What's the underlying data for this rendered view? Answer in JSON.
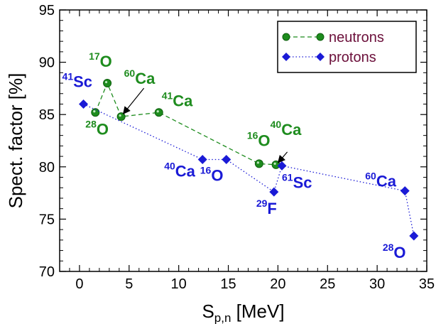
{
  "chart_data": {
    "type": "line",
    "xlabel": {
      "main": "S",
      "sub": "p,n",
      "rest": " [MeV]"
    },
    "ylabel": "Spect. factor [%]",
    "xlim": [
      -2,
      35
    ],
    "ylim": [
      70,
      95
    ],
    "x_ticks": [
      0,
      5,
      10,
      15,
      20,
      25,
      30,
      35
    ],
    "y_ticks": [
      70,
      75,
      80,
      85,
      90,
      95
    ],
    "grid": false,
    "legend_position": "top-right",
    "colors": {
      "neutrons": "#1e8c1e",
      "protons": "#1a1ad6",
      "legend_text": "#6b0f3a"
    },
    "series": [
      {
        "name": "neutrons",
        "marker": "circle",
        "line_style": "dashed",
        "points": [
          {
            "x": 1.6,
            "y": 85.2
          },
          {
            "x": 2.8,
            "y": 88.0
          },
          {
            "x": 4.2,
            "y": 84.8
          },
          {
            "x": 8.0,
            "y": 85.2
          },
          {
            "x": 18.1,
            "y": 80.3
          },
          {
            "x": 19.8,
            "y": 80.2
          }
        ]
      },
      {
        "name": "protons",
        "marker": "diamond",
        "line_style": "dotted",
        "points": [
          {
            "x": 0.4,
            "y": 86.0
          },
          {
            "x": 12.4,
            "y": 80.7
          },
          {
            "x": 14.8,
            "y": 80.7
          },
          {
            "x": 19.6,
            "y": 77.6
          },
          {
            "x": 20.4,
            "y": 80.1
          },
          {
            "x": 32.8,
            "y": 77.7
          },
          {
            "x": 33.7,
            "y": 73.4
          }
        ]
      }
    ],
    "annotations": [
      {
        "series": "neutrons",
        "mass": "17",
        "element": "O",
        "x": 2.8,
        "y": 88.0
      },
      {
        "series": "neutrons",
        "mass": "60",
        "element": "Ca",
        "x": 4.2,
        "y": 84.8
      },
      {
        "series": "neutrons",
        "mass": "28",
        "element": "O",
        "x": 1.6,
        "y": 85.2
      },
      {
        "series": "neutrons",
        "mass": "41",
        "element": "Ca",
        "x": 8.0,
        "y": 85.2
      },
      {
        "series": "neutrons",
        "mass": "16",
        "element": "O",
        "x": 18.1,
        "y": 80.3
      },
      {
        "series": "neutrons",
        "mass": "40",
        "element": "Ca",
        "x": 19.8,
        "y": 80.2
      },
      {
        "series": "protons",
        "mass": "41",
        "element": "Sc",
        "x": 0.4,
        "y": 86.0
      },
      {
        "series": "protons",
        "mass": "40",
        "element": "Ca",
        "x": 12.4,
        "y": 80.7
      },
      {
        "series": "protons",
        "mass": "16",
        "element": "O",
        "x": 14.8,
        "y": 80.7
      },
      {
        "series": "protons",
        "mass": "29",
        "element": "F",
        "x": 19.6,
        "y": 77.6
      },
      {
        "series": "protons",
        "mass": "61",
        "element": "Sc",
        "x": 20.4,
        "y": 80.1
      },
      {
        "series": "protons",
        "mass": "60",
        "element": "Ca",
        "x": 32.8,
        "y": 77.7
      },
      {
        "series": "protons",
        "mass": "28",
        "element": "O",
        "x": 33.7,
        "y": 73.4
      }
    ]
  }
}
